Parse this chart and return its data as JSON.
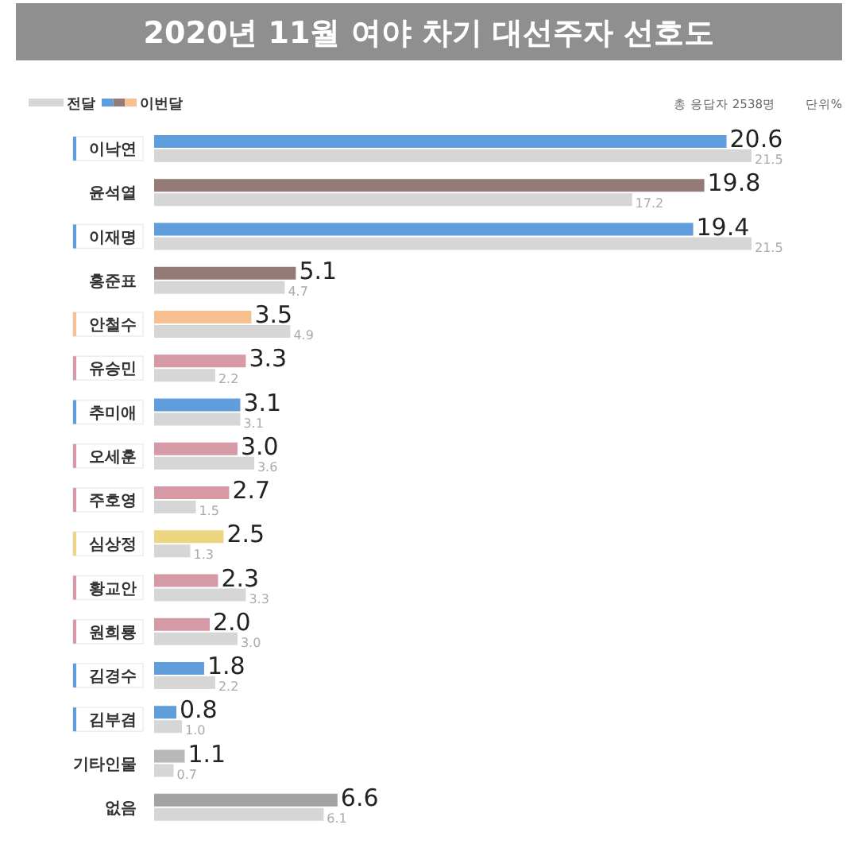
{
  "chart_data": {
    "type": "bar",
    "orientation": "horizontal",
    "title": "2020년 11월 여야 차기 대선주자 선호도",
    "categories": [
      "이낙연",
      "윤석열",
      "이재명",
      "홍준표",
      "안철수",
      "유승민",
      "추미애",
      "오세훈",
      "주호영",
      "심상정",
      "황교안",
      "원희룡",
      "김경수",
      "김부겸",
      "기타인물",
      "없음"
    ],
    "series": [
      {
        "name": "이번달",
        "colors": [
          "#5f9ddc",
          "#957b78",
          "#5f9ddc",
          "#957b78",
          "#f9c08f",
          "#d59aa6",
          "#5f9ddc",
          "#d59aa6",
          "#d59aa6",
          "#eed57f",
          "#d59aa6",
          "#d59aa6",
          "#5f9ddc",
          "#5f9ddc",
          "#b8b8b8",
          "#a3a3a3"
        ],
        "values": [
          20.6,
          19.8,
          19.4,
          5.1,
          3.5,
          3.3,
          3.1,
          3.0,
          2.7,
          2.5,
          2.3,
          2.0,
          1.8,
          0.8,
          1.1,
          6.6
        ],
        "value_labels": [
          "20.6",
          "19.8",
          "19.4",
          "5.1",
          "3.5",
          "3.3",
          "3.1",
          "3.0",
          "2.7",
          "2.5",
          "2.3",
          "2.0",
          "1.8",
          "0.8",
          "1.1",
          "6.6"
        ]
      },
      {
        "name": "전달",
        "color": "#d6d6d6",
        "values": [
          21.5,
          17.2,
          21.5,
          4.7,
          4.9,
          2.2,
          3.1,
          3.6,
          1.5,
          1.3,
          3.3,
          3.0,
          2.2,
          1.0,
          0.7,
          6.1
        ],
        "value_labels": [
          "21.5",
          "17.2",
          "21.5",
          "4.7",
          "4.9",
          "2.2",
          "3.1",
          "3.6",
          "1.5",
          "1.3",
          "3.3",
          "3.0",
          "2.2",
          "1.0",
          "0.7",
          "6.1"
        ]
      }
    ],
    "legend": "top left",
    "annotations": [
      "총 응답자 2538명",
      "단위%"
    ]
  }
}
